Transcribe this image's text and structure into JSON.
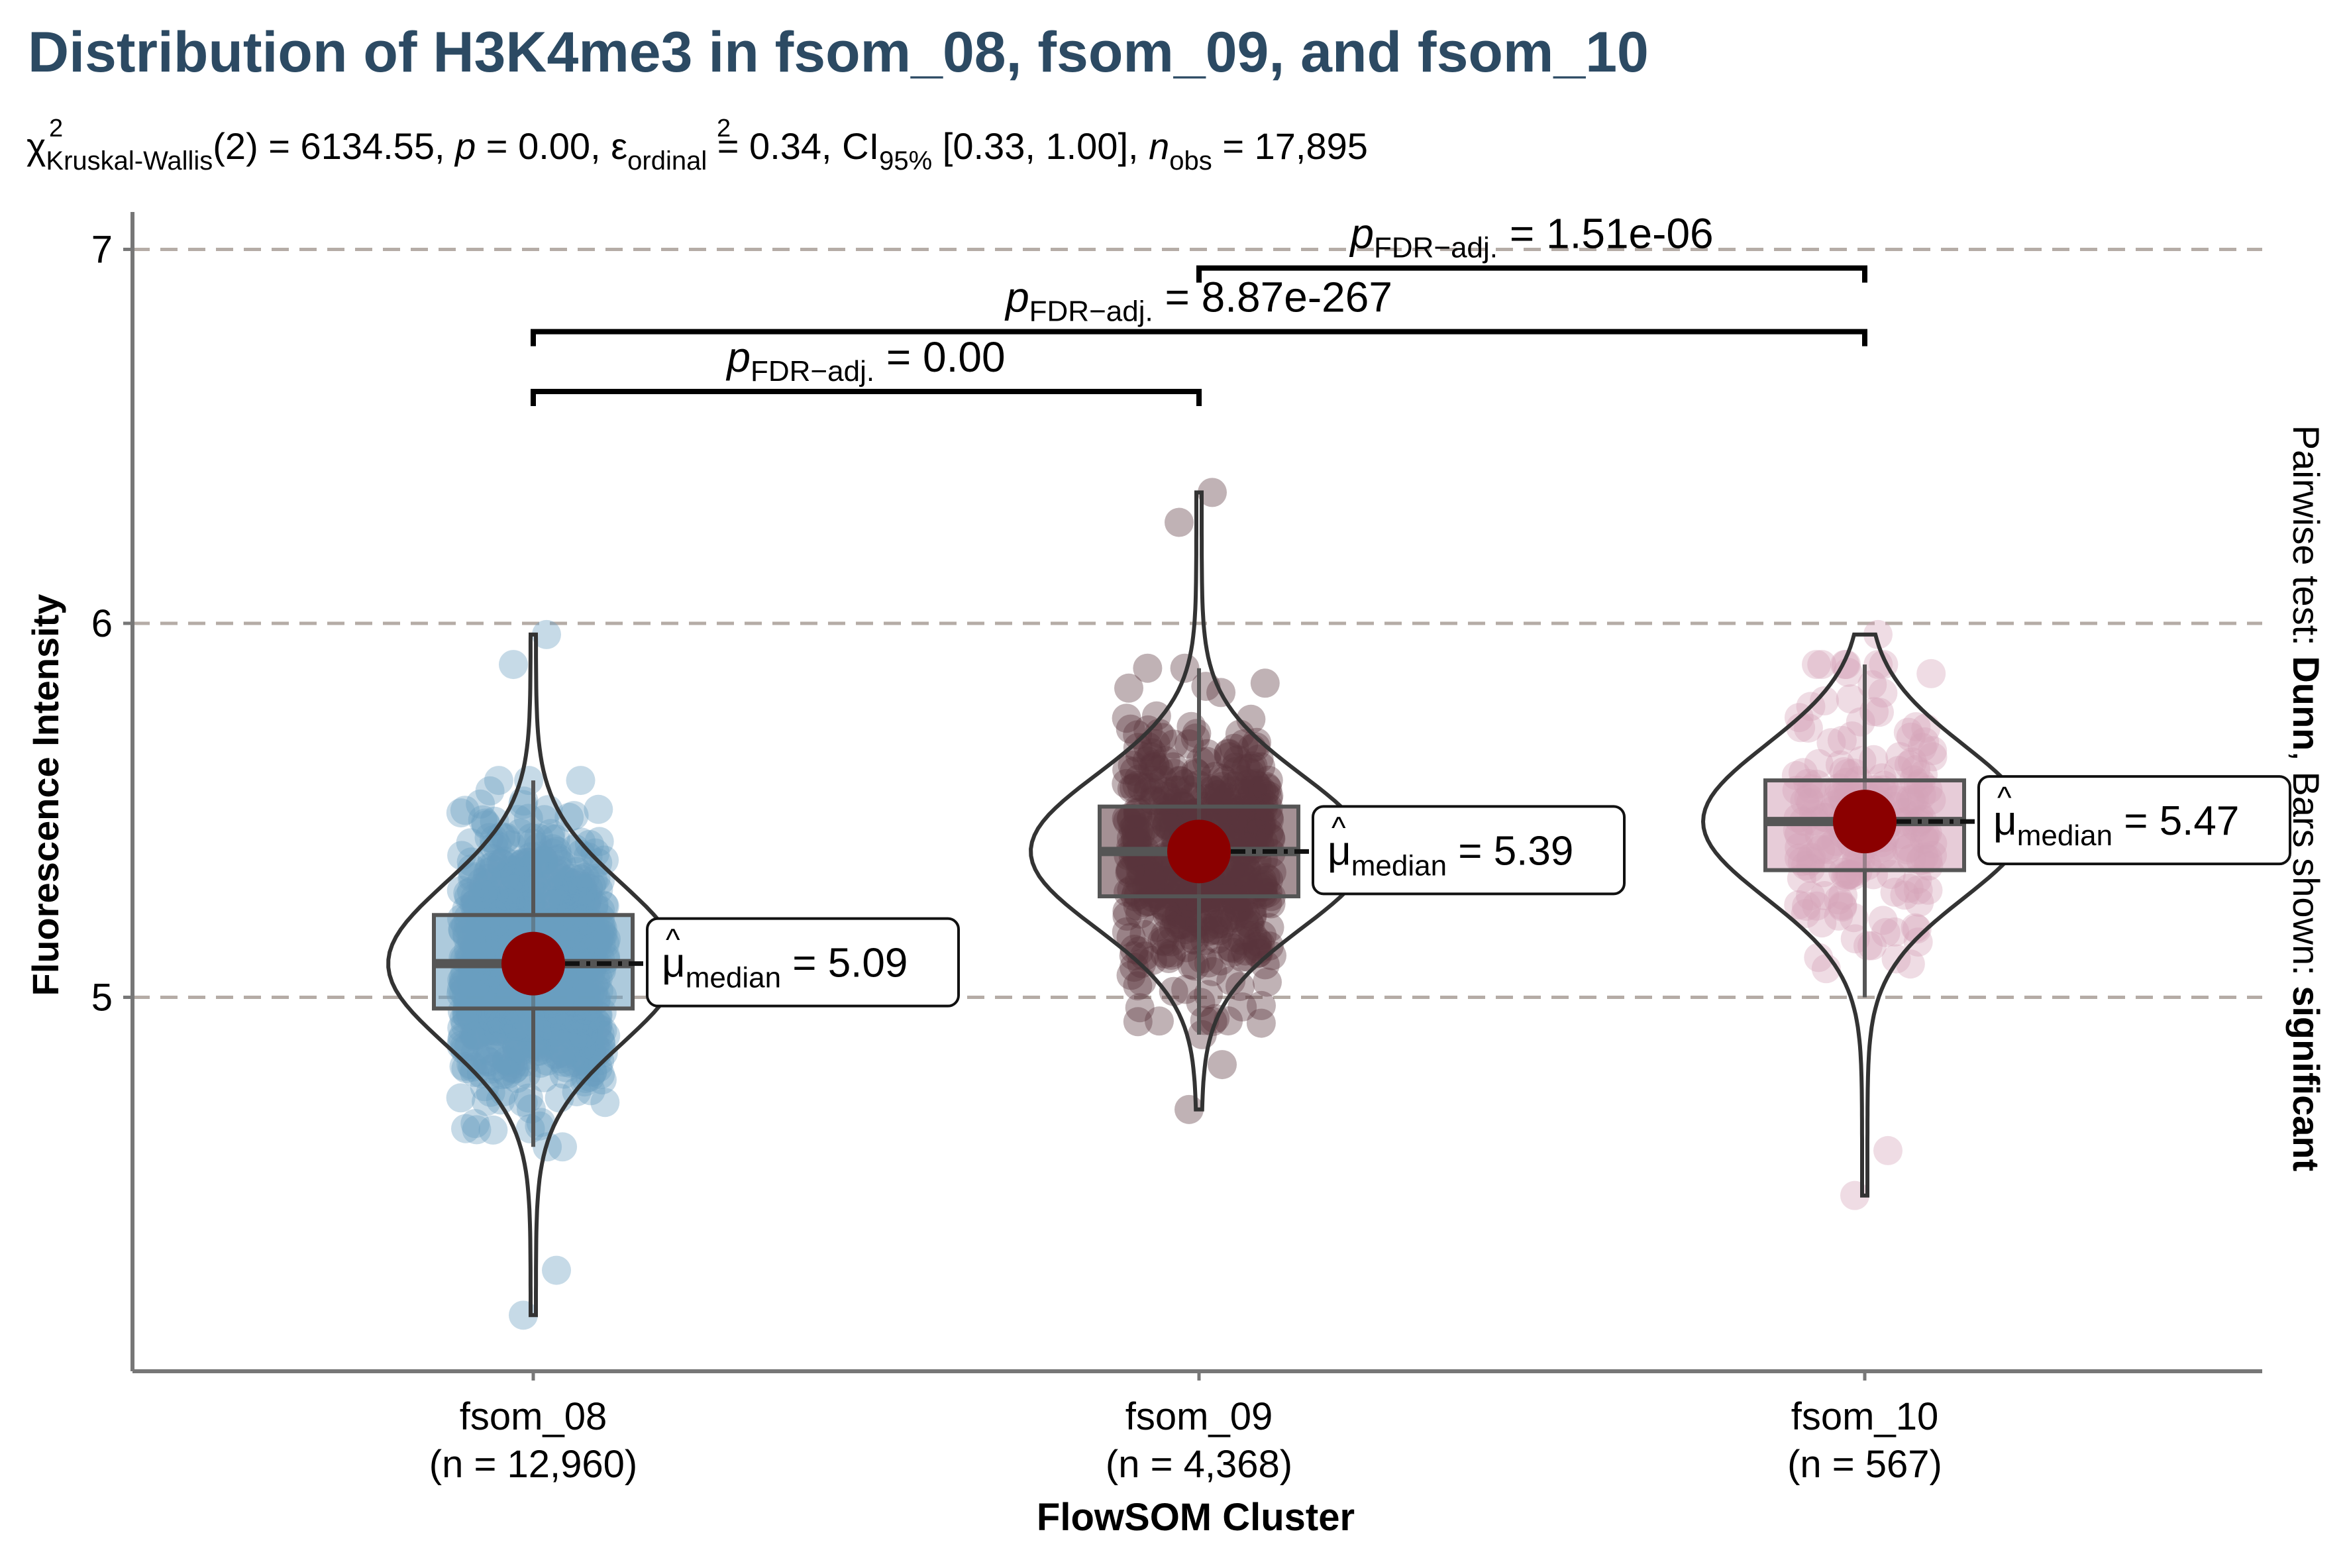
{
  "chart_data": {
    "type": "violin",
    "title": "Distribution of H3K4me3 in fsom_08, fsom_09, and fsom_10",
    "subtitle": {
      "chi_symbol": "χ",
      "chi_sup": "2",
      "chi_sub": "Kruskal-Wallis",
      "chi_value": "(2) = 6134.55, ",
      "p_symbol": "p",
      "p_value": " = 0.00, ",
      "eps_symbol": "ε",
      "eps_sup": "2",
      "eps_sub": "ordinal",
      "eps_value": " = 0.34, CI",
      "ci_sub": "95%",
      "ci_value": " [0.33, 1.00], ",
      "n_symbol": "n",
      "n_sub": "obs",
      "n_value": " = 17,895"
    },
    "xlabel": "FlowSOM Cluster",
    "ylabel": "Fluorescence Intensity",
    "right_label": {
      "prefix": "Pairwise test: ",
      "test": "Dunn",
      "middle": ", Bars shown: ",
      "bars": "significant"
    },
    "ylim": [
      4.0,
      7.1
    ],
    "yticks": [
      5,
      6,
      7
    ],
    "grid": "dashed horizontal at major ticks",
    "categories": [
      {
        "name": "fsom_08",
        "n_label": "(n = 12,960)",
        "color": "#6a9ec0",
        "median": 5.09,
        "q1": 4.97,
        "q3": 5.22,
        "whisker_low": 4.6,
        "whisker_high": 5.58,
        "min": 4.15,
        "max": 5.97,
        "median_label": "5.09"
      },
      {
        "name": "fsom_09",
        "n_label": "(n = 4,368)",
        "color": "#5a343d",
        "median": 5.39,
        "q1": 5.27,
        "q3": 5.51,
        "whisker_low": 4.9,
        "whisker_high": 5.88,
        "min": 4.7,
        "max": 6.35,
        "median_label": "5.39"
      },
      {
        "name": "fsom_10",
        "n_label": "(n = 567)",
        "color": "#d4a3b8",
        "median": 5.47,
        "q1": 5.34,
        "q3": 5.58,
        "whisker_low": 5.0,
        "whisker_high": 5.89,
        "min": 4.47,
        "max": 5.97,
        "median_label": "5.47"
      }
    ],
    "median_label": {
      "mu": "μ",
      "sub": "median",
      "eq": " = "
    },
    "comparisons": [
      {
        "from": 0,
        "to": 1,
        "y": 6.62,
        "p_symbol": "p",
        "p_sub": "FDR−adj.",
        "p_value": " = 0.00"
      },
      {
        "from": 0,
        "to": 2,
        "y": 6.78,
        "p_symbol": "p",
        "p_sub": "FDR−adj.",
        "p_value": " = 8.87e-267"
      },
      {
        "from": 1,
        "to": 2,
        "y": 6.95,
        "p_symbol": "p",
        "p_sub": "FDR−adj.",
        "p_value": " = 1.51e-06"
      }
    ],
    "colors": {
      "title": "#2c4a63",
      "median_point": "#8b0000",
      "grid": "#b5aca6"
    }
  }
}
